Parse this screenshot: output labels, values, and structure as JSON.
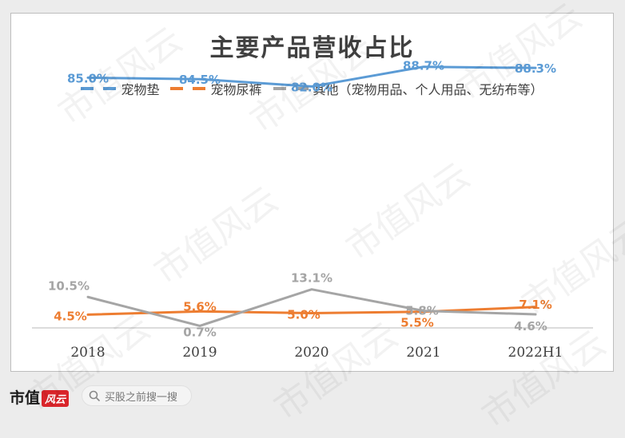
{
  "chart_data": {
    "type": "line",
    "title": "主要产品营收占比",
    "categories": [
      "2018",
      "2019",
      "2020",
      "2021",
      "2022H1"
    ],
    "series": [
      {
        "name": "宠物垫",
        "values": [
          85.0,
          84.5,
          82.0,
          88.7,
          88.3
        ],
        "labels": [
          "85.0%",
          "84.5%",
          "82.0%",
          "88.7%",
          "88.3%"
        ],
        "color": "#5b9bd5"
      },
      {
        "name": "宠物尿裤",
        "values": [
          4.5,
          5.6,
          5.0,
          5.5,
          7.1
        ],
        "labels": [
          "4.5%",
          "5.6%",
          "5.0%",
          "5.5%",
          "7.1%"
        ],
        "color": "#ed7d31"
      },
      {
        "name": "其他（宠物用品、个人用品、无纺布等）",
        "values": [
          10.5,
          0.7,
          13.1,
          5.8,
          4.6
        ],
        "labels": [
          "10.5%",
          "0.7%",
          "13.1%",
          "5.8%",
          "4.6%"
        ],
        "color": "#a5a5a5"
      }
    ],
    "ylim": [
      0,
      100
    ],
    "grid": false,
    "legend_position": "top"
  },
  "watermark_text": "市值风云",
  "footer": {
    "brand": "市值",
    "brand_mark": "风云",
    "search_placeholder": "买股之前搜一搜"
  }
}
